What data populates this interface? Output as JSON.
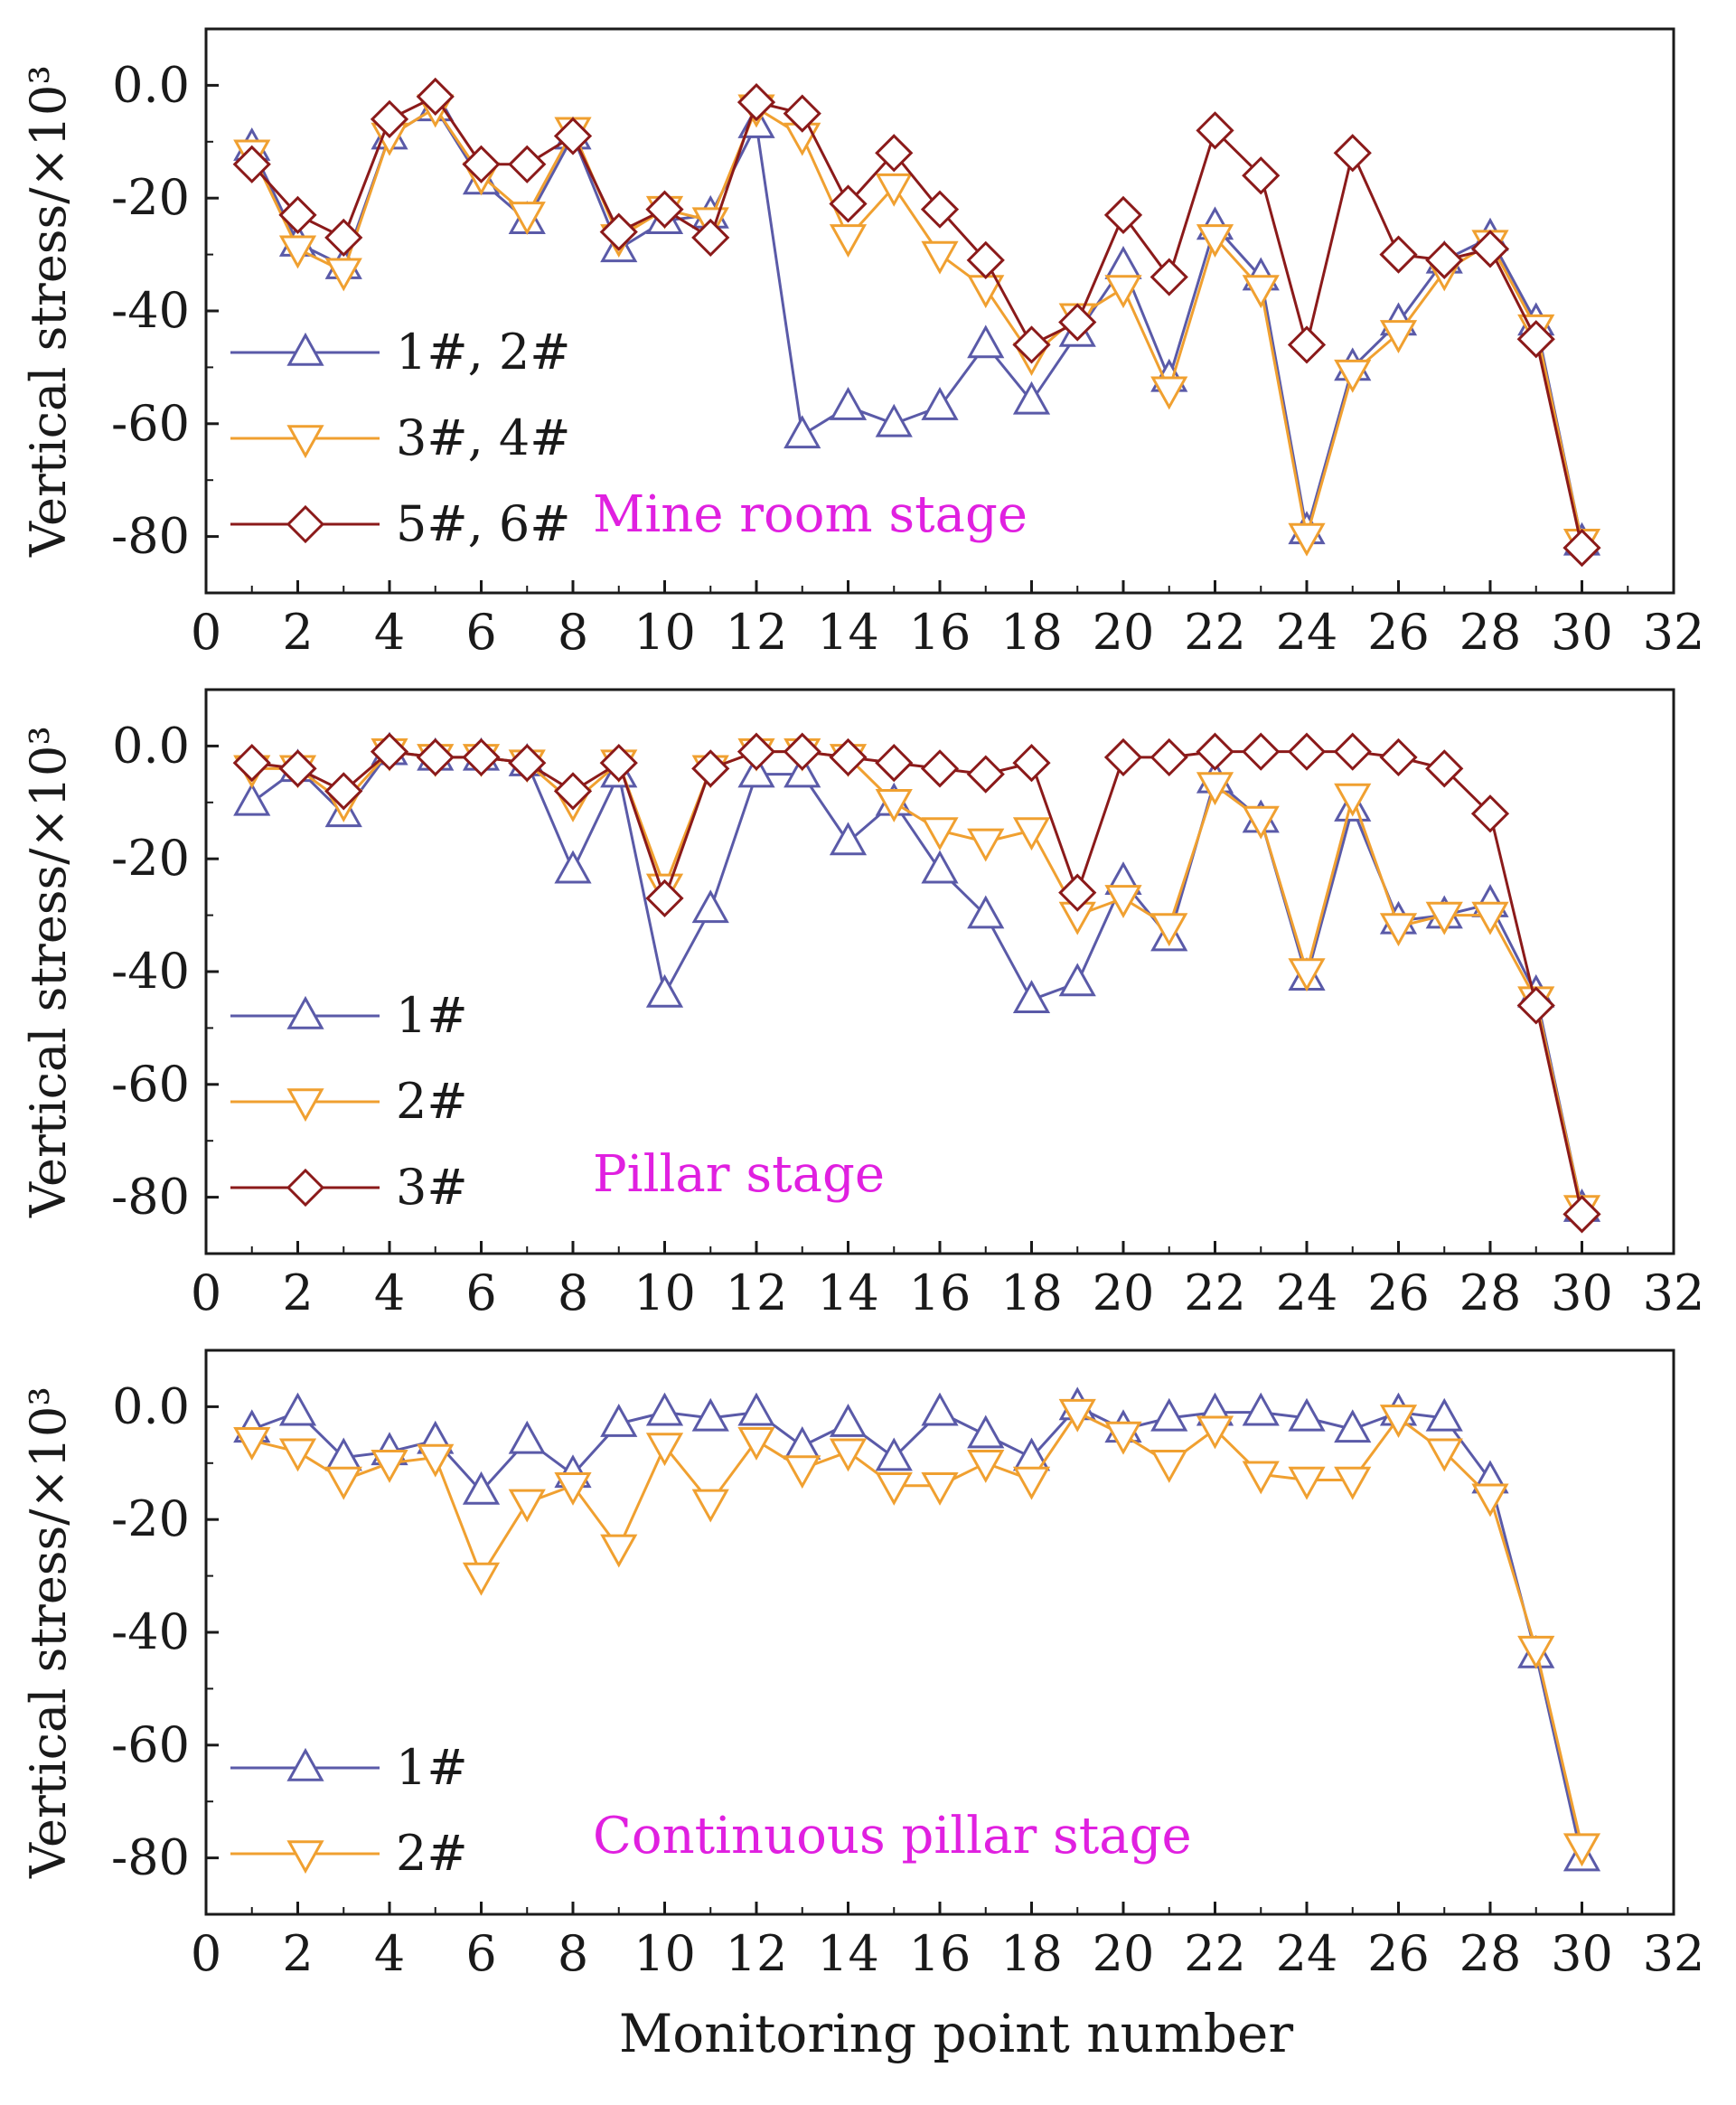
{
  "colors": {
    "s1": "#5a5aa8",
    "s2": "#f0a030",
    "s3": "#8b1a1a",
    "stage_label": "#e020e0",
    "frame": "#1a1a1a"
  },
  "xlabel": "Monitoring point number",
  "chart_data": [
    {
      "type": "line",
      "title": "Mine room stage",
      "ylabel": "Vertical stress/×10³",
      "xlim": [
        0,
        32
      ],
      "ylim": [
        -90,
        10
      ],
      "xticks": [
        0,
        2,
        4,
        6,
        8,
        10,
        12,
        14,
        16,
        18,
        20,
        22,
        24,
        26,
        28,
        30,
        32
      ],
      "yticks": [
        0,
        -20,
        -40,
        -60,
        -80
      ],
      "ytick_labels": [
        "0.0",
        "-20",
        "-40",
        "-60",
        "-80"
      ],
      "x": [
        1,
        2,
        3,
        4,
        5,
        6,
        7,
        8,
        9,
        10,
        11,
        12,
        13,
        14,
        15,
        16,
        17,
        18,
        19,
        20,
        21,
        22,
        23,
        24,
        25,
        26,
        27,
        28,
        29,
        30
      ],
      "series": [
        {
          "name": "1#, 2#",
          "marker": "triangle-up",
          "color": "#5a5aa8",
          "values": [
            -11,
            -28,
            -32,
            -9,
            -4,
            -17,
            -24,
            -9,
            -29,
            -24,
            -23,
            -7,
            -62,
            -57,
            -60,
            -57,
            -46,
            -56,
            -44,
            -32,
            -52,
            -25,
            -34,
            -79,
            -50,
            -42,
            -31,
            -27,
            -42,
            -81
          ]
        },
        {
          "name": "3#, 4#",
          "marker": "triangle-down",
          "color": "#f0a030",
          "values": [
            -12,
            -29,
            -33,
            -9,
            -4,
            -16,
            -23,
            -8,
            -27,
            -22,
            -24,
            -4,
            -9,
            -27,
            -18,
            -30,
            -36,
            -48,
            -41,
            -36,
            -54,
            -27,
            -36,
            -80,
            -51,
            -44,
            -33,
            -28,
            -43,
            -81
          ]
        },
        {
          "name": "5#, 6#",
          "marker": "diamond",
          "color": "#8b1a1a",
          "values": [
            -14,
            -23,
            -27,
            -6,
            -2,
            -14,
            -14,
            -9,
            -26,
            -22,
            -27,
            -3,
            -5,
            -21,
            -12,
            -22,
            -31,
            -46,
            -42,
            -23,
            -34,
            -8,
            -16,
            -46,
            -12,
            -30,
            -31,
            -29,
            -45,
            -82
          ]
        }
      ]
    },
    {
      "type": "line",
      "title": "Pillar stage",
      "ylabel": "Vertical stress/×10³",
      "xlim": [
        0,
        32
      ],
      "ylim": [
        -90,
        10
      ],
      "xticks": [
        0,
        2,
        4,
        6,
        8,
        10,
        12,
        14,
        16,
        18,
        20,
        22,
        24,
        26,
        28,
        30,
        32
      ],
      "yticks": [
        0,
        -20,
        -40,
        -60,
        -80
      ],
      "ytick_labels": [
        "0.0",
        "-20",
        "-40",
        "-60",
        "-80"
      ],
      "x": [
        1,
        2,
        3,
        4,
        5,
        6,
        7,
        8,
        9,
        10,
        11,
        12,
        13,
        14,
        15,
        16,
        17,
        18,
        19,
        20,
        21,
        22,
        23,
        24,
        25,
        26,
        27,
        28,
        29,
        30
      ],
      "series": [
        {
          "name": "1#",
          "marker": "triangle-up",
          "color": "#5a5aa8",
          "values": [
            -10,
            -4,
            -12,
            -1,
            -2,
            -2,
            -3,
            -22,
            -5,
            -44,
            -29,
            -5,
            -5,
            -17,
            -10,
            -22,
            -30,
            -45,
            -42,
            -24,
            -34,
            -6,
            -13,
            -41,
            -11,
            -31,
            -30,
            -28,
            -44,
            -82
          ]
        },
        {
          "name": "2#",
          "marker": "triangle-down",
          "color": "#f0a030",
          "values": [
            -4,
            -4,
            -10,
            -1,
            -2,
            -2,
            -3,
            -10,
            -3,
            -25,
            -4,
            -1,
            -1,
            -2,
            -10,
            -15,
            -17,
            -15,
            -30,
            -27,
            -32,
            -7,
            -13,
            -40,
            -9,
            -32,
            -30,
            -30,
            -45,
            -82
          ]
        },
        {
          "name": "3#",
          "marker": "diamond",
          "color": "#8b1a1a",
          "values": [
            -3,
            -4,
            -8,
            -1,
            -2,
            -2,
            -3,
            -8,
            -3,
            -27,
            -4,
            -1,
            -1,
            -2,
            -3,
            -4,
            -5,
            -3,
            -26,
            -2,
            -2,
            -1,
            -1,
            -1,
            -1,
            -2,
            -4,
            -12,
            -46,
            -83
          ]
        }
      ]
    },
    {
      "type": "line",
      "title": "Continuous pillar stage",
      "ylabel": "Vertical stress/×10³",
      "xlim": [
        0,
        32
      ],
      "ylim": [
        -90,
        10
      ],
      "xticks": [
        0,
        2,
        4,
        6,
        8,
        10,
        12,
        14,
        16,
        18,
        20,
        22,
        24,
        26,
        28,
        30,
        32
      ],
      "yticks": [
        0,
        -20,
        -40,
        -60,
        -80
      ],
      "ytick_labels": [
        "0.0",
        "-20",
        "-40",
        "-60",
        "-80"
      ],
      "x": [
        1,
        2,
        3,
        4,
        5,
        6,
        7,
        8,
        9,
        10,
        11,
        12,
        13,
        14,
        15,
        16,
        17,
        18,
        19,
        20,
        21,
        22,
        23,
        24,
        25,
        26,
        27,
        28,
        29,
        30
      ],
      "series": [
        {
          "name": "1#",
          "marker": "triangle-up",
          "color": "#5a5aa8",
          "values": [
            -4,
            -1,
            -9,
            -8,
            -6,
            -15,
            -6,
            -12,
            -3,
            -1,
            -2,
            -1,
            -7,
            -3,
            -9,
            -1,
            -5,
            -9,
            0,
            -4,
            -2,
            -1,
            -1,
            -2,
            -4,
            -1,
            -2,
            -13,
            -44,
            -80
          ]
        },
        {
          "name": "2#",
          "marker": "triangle-down",
          "color": "#f0a030",
          "values": [
            -6,
            -8,
            -13,
            -10,
            -9,
            -30,
            -17,
            -14,
            -25,
            -7,
            -17,
            -6,
            -11,
            -8,
            -14,
            -14,
            -10,
            -13,
            -1,
            -5,
            -10,
            -4,
            -12,
            -13,
            -13,
            -2,
            -8,
            -16,
            -43,
            -78
          ]
        }
      ]
    }
  ]
}
